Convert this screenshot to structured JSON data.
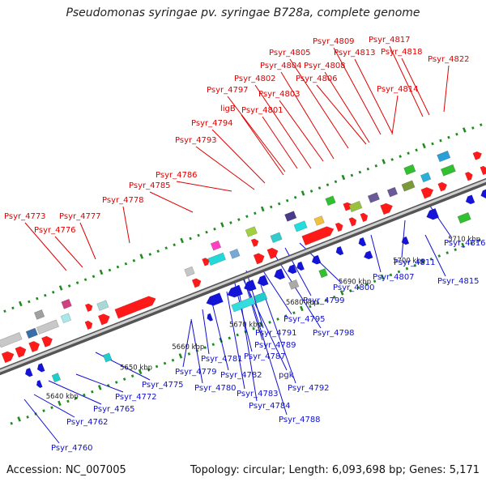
{
  "title": "Pseudomonas syringae pv. syringae B728a, complete genome",
  "footer": {
    "accession": "Accession: NC_007005",
    "summary": "Topology: circular; Length: 6,093,698 bp; Genes: 5,171"
  },
  "colors": {
    "forward_label": "#e00000",
    "reverse_label": "#1010d0",
    "backbone": "#8a8a8a",
    "tick": "#1e8c1e"
  },
  "kbp_ticks": [
    "5640 kbp",
    "5650 kbp",
    "5660 kbp",
    "5670 kbp",
    "5680 kbp",
    "5690 kbp",
    "5700 kbp",
    "5710 kbp"
  ],
  "forward_labels": [
    "Psyr_4773",
    "Psyr_4776",
    "Psyr_4777",
    "Psyr_4778",
    "Psyr_4785",
    "Psyr_4786",
    "Psyr_4793",
    "Psyr_4794",
    "ligB",
    "Psyr_4797",
    "Psyr_4801",
    "Psyr_4802",
    "Psyr_4803",
    "Psyr_4804",
    "Psyr_4805",
    "Psyr_4806",
    "Psyr_4808",
    "Psyr_4809",
    "Psyr_4813",
    "Psyr_4814",
    "Psyr_4817",
    "Psyr_4818",
    "Psyr_4822"
  ],
  "reverse_labels": [
    "Psyr_4760",
    "Psyr_4762",
    "Psyr_4765",
    "Psyr_4772",
    "Psyr_4775",
    "Psyr_4779",
    "Psyr_4780",
    "Psyr_4781",
    "Psyr_4782",
    "Psyr_4783",
    "Psyr_4784",
    "Psyr_4787",
    "Psyr_4788",
    "pgk",
    "Psyr_4789",
    "Psyr_4791",
    "Psyr_4792",
    "Psyr_4795",
    "Psyr_4798",
    "Psyr_4799",
    "Psyr_4800",
    "Psyr_4807",
    "Psyr_4811",
    "Psyr_4815",
    "Psyr_4816"
  ]
}
